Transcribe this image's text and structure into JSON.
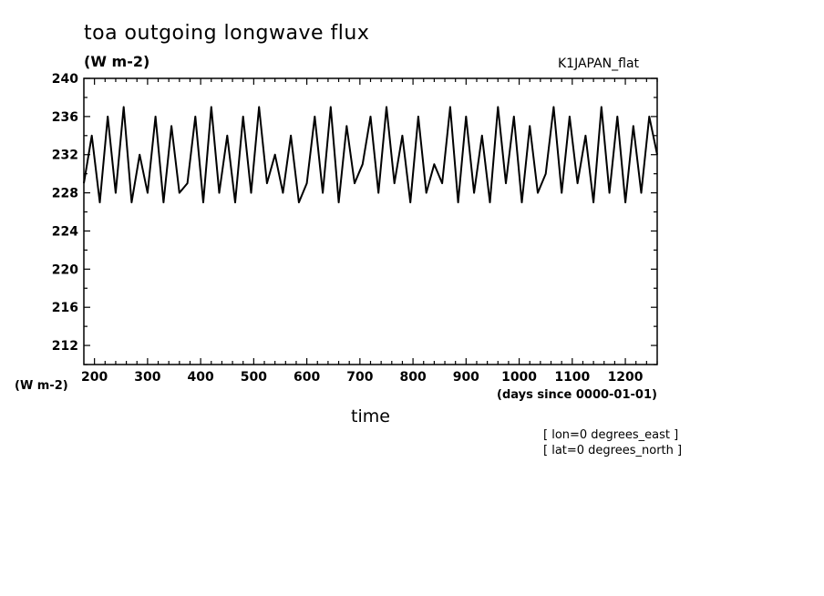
{
  "chart_data": {
    "type": "line",
    "title": "toa outgoing longwave flux",
    "units": "(W m-2)",
    "dataset": "K1JAPAN_flat",
    "ylabel": "(W m-2)",
    "xlabel": "time",
    "x_units": "(days since 0000-01-01)",
    "notes": [
      "[ lon=0 degrees_east ]",
      "[ lat=0 degrees_north ]"
    ],
    "xlim": [
      180,
      1260
    ],
    "ylim": [
      210,
      240
    ],
    "x_ticks": [
      200,
      300,
      400,
      500,
      600,
      700,
      800,
      900,
      1000,
      1100,
      1200
    ],
    "y_ticks": [
      212,
      216,
      220,
      224,
      228,
      232,
      236,
      240
    ],
    "grid": false,
    "series": [
      {
        "x": [
          180,
          195,
          210,
          225,
          240,
          255,
          270,
          285,
          300,
          315,
          330,
          345,
          360,
          375,
          390,
          405,
          420,
          435,
          450,
          465,
          480,
          495,
          510,
          525,
          540,
          555,
          570,
          585,
          600,
          615,
          630,
          645,
          660,
          675,
          690,
          705,
          720,
          735,
          750,
          765,
          780,
          795,
          810,
          825,
          840,
          855,
          870,
          885,
          900,
          915,
          930,
          945,
          960,
          975,
          990,
          1005,
          1020,
          1035,
          1050,
          1065,
          1080,
          1095,
          1110,
          1125,
          1140,
          1155,
          1170,
          1185,
          1200,
          1215,
          1230,
          1245,
          1260
        ],
        "values": [
          229,
          234,
          227,
          236,
          228,
          237,
          227,
          232,
          228,
          236,
          227,
          235,
          228,
          229,
          236,
          227,
          237,
          228,
          234,
          227,
          236,
          228,
          237,
          229,
          232,
          228,
          234,
          227,
          229,
          236,
          228,
          237,
          227,
          235,
          229,
          231,
          236,
          228,
          237,
          229,
          234,
          227,
          236,
          228,
          231,
          229,
          237,
          227,
          236,
          228,
          234,
          227,
          237,
          229,
          236,
          227,
          235,
          228,
          230,
          237,
          228,
          236,
          229,
          234,
          227,
          237,
          228,
          236,
          227,
          235,
          228,
          236,
          232
        ]
      }
    ]
  }
}
